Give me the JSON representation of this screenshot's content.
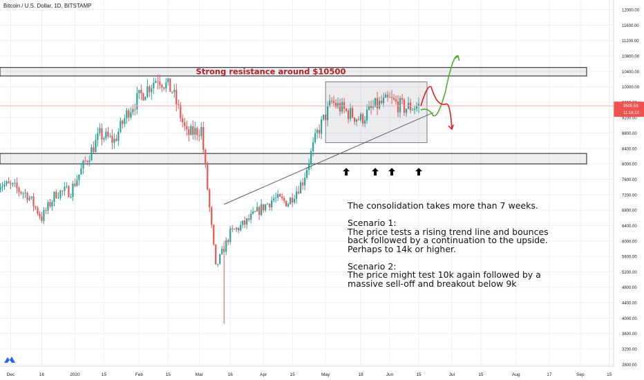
{
  "header": {
    "symbol": "Bitcoin / U.S. Dollar, 1D, BITSTAMP"
  },
  "price_scale": {
    "ticks": [
      "12000.00",
      "11600.00",
      "11200.00",
      "10800.00",
      "10400.00",
      "10000.00",
      "9600.00",
      "9200.00",
      "8800.00",
      "8400.00",
      "8000.00",
      "7600.00",
      "7200.00",
      "6800.00",
      "6400.00",
      "6000.00",
      "5600.00",
      "5200.00",
      "4800.00",
      "4400.00",
      "4000.00",
      "3600.00",
      "3200.00",
      "2800.00"
    ],
    "last_price": "9505.59",
    "countdown": "11:16:10"
  },
  "time_scale": {
    "ticks": [
      "Dec",
      "16",
      "2020",
      "15",
      "Feb",
      "15",
      "Mar",
      "16",
      "Apr",
      "15",
      "May",
      "18",
      "Jun",
      "15",
      "Jul",
      "15",
      "Aug",
      "17",
      "Sep",
      "15"
    ]
  },
  "annotations": {
    "resistance_label": "Strong resistance around $10500",
    "note": [
      "The consolidation takes more than 7 weeks.",
      "",
      "Scenario 1:",
      "The price tests a rising trend line and bounces",
      "back followed by a continuation to the upside.",
      "Perhaps to 14k or higher.",
      "",
      "Scenario 2:",
      "The price might test 10k again followed by a",
      "massive sell-off and breakout below 9k"
    ]
  },
  "colors": {
    "up": "#26a69a",
    "down": "#ef5350",
    "resistance_text": "#b22222",
    "scenario_up": "#4caf2a",
    "scenario_down": "#e02020",
    "last_price_bg": "#ef5350",
    "grid": "#eef0f3"
  },
  "chart_data": {
    "type": "candlestick",
    "symbol": "BTCUSD",
    "interval": "1D",
    "exchange": "BITSTAMP",
    "ylim": [
      2600,
      12300
    ],
    "y_scale": "linear",
    "grid": true,
    "resistance_zone": [
      10280,
      10500
    ],
    "support_zone": [
      8000,
      8270
    ],
    "consolidation_box": {
      "from": "2020-05-01",
      "to": "2020-06-19",
      "low": 8550,
      "high": 10130
    },
    "trend_line": {
      "from": {
        "date": "2020-03-13",
        "price": 6950
      },
      "to": {
        "date": "2020-06-22",
        "price": 9330
      }
    },
    "test_arrows": [
      "2020-05-11",
      "2020-05-25",
      "2020-06-02",
      "2020-06-15"
    ],
    "scenario_1_path": [
      {
        "date": "2020-06-16",
        "price": 9400
      },
      {
        "date": "2020-06-22",
        "price": 9250
      },
      {
        "date": "2020-06-28",
        "price": 9900
      },
      {
        "date": "2020-07-04",
        "price": 10800
      }
    ],
    "scenario_2_path": [
      {
        "date": "2020-06-16",
        "price": 9500
      },
      {
        "date": "2020-06-21",
        "price": 10000
      },
      {
        "date": "2020-06-28",
        "price": 9550
      },
      {
        "date": "2020-07-01",
        "price": 8900
      }
    ],
    "weekly_closes": [
      {
        "date": "2019-11-25",
        "close": 7500
      },
      {
        "date": "2019-12-02",
        "close": 7400
      },
      {
        "date": "2019-12-09",
        "close": 7200
      },
      {
        "date": "2019-12-16",
        "close": 6600
      },
      {
        "date": "2019-12-23",
        "close": 7250
      },
      {
        "date": "2019-12-30",
        "close": 7300
      },
      {
        "date": "2020-01-06",
        "close": 8050
      },
      {
        "date": "2020-01-13",
        "close": 8750
      },
      {
        "date": "2020-01-20",
        "close": 8600
      },
      {
        "date": "2020-01-27",
        "close": 9400
      },
      {
        "date": "2020-02-03",
        "close": 9850
      },
      {
        "date": "2020-02-10",
        "close": 10250
      },
      {
        "date": "2020-02-17",
        "close": 9900
      },
      {
        "date": "2020-02-24",
        "close": 8750
      },
      {
        "date": "2020-03-02",
        "close": 8900
      },
      {
        "date": "2020-03-09",
        "close": 5300
      },
      {
        "date": "2020-03-16",
        "close": 6200
      },
      {
        "date": "2020-03-23",
        "close": 6450
      },
      {
        "date": "2020-03-30",
        "close": 6800
      },
      {
        "date": "2020-04-06",
        "close": 7100
      },
      {
        "date": "2020-04-13",
        "close": 7000
      },
      {
        "date": "2020-04-20",
        "close": 7550
      },
      {
        "date": "2020-04-27",
        "close": 8800
      },
      {
        "date": "2020-05-04",
        "close": 9600
      },
      {
        "date": "2020-05-11",
        "close": 9350
      },
      {
        "date": "2020-05-18",
        "close": 9150
      },
      {
        "date": "2020-05-25",
        "close": 9500
      },
      {
        "date": "2020-06-01",
        "close": 9650
      },
      {
        "date": "2020-06-08",
        "close": 9450
      },
      {
        "date": "2020-06-15",
        "close": 9505.59
      }
    ]
  }
}
